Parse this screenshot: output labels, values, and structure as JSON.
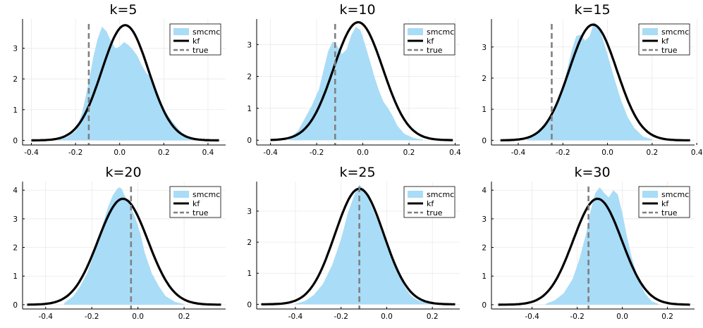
{
  "colors": {
    "smcmc_fill": "#a9dcf7",
    "kf_line": "#000000",
    "true_line": "#808080"
  },
  "legend": [
    "smcmc",
    "kf",
    "true"
  ],
  "chart_data": [
    {
      "type": "area",
      "title": "k=5",
      "xlim": [
        -0.44,
        0.48
      ],
      "ylim": [
        -0.15,
        3.95
      ],
      "xticks": [
        -0.4,
        -0.2,
        0.0,
        0.2,
        0.4
      ],
      "xtick_labels": [
        "-0.4",
        "-0.2",
        "0.0",
        "0.2",
        "0.4"
      ],
      "yticks": [
        0,
        1,
        2,
        3
      ],
      "ytick_labels": [
        "0",
        "1",
        "2",
        "3"
      ],
      "series": [
        {
          "name": "smcmc",
          "type": "area",
          "x": [
            -0.28,
            -0.24,
            -0.2,
            -0.17,
            -0.14,
            -0.12,
            -0.1,
            -0.08,
            -0.06,
            -0.04,
            -0.02,
            0.0,
            0.02,
            0.04,
            0.06,
            0.08,
            0.1,
            0.12,
            0.14,
            0.16,
            0.18,
            0.2,
            0.24,
            0.28,
            0.32,
            0.36
          ],
          "y": [
            0.03,
            0.1,
            0.3,
            0.9,
            1.9,
            2.7,
            3.3,
            3.7,
            3.55,
            3.25,
            3.0,
            3.05,
            3.2,
            3.1,
            2.95,
            2.75,
            2.45,
            2.2,
            2.05,
            1.75,
            1.4,
            1.0,
            0.6,
            0.25,
            0.08,
            0.02
          ]
        },
        {
          "name": "kf",
          "type": "normal",
          "mu": 0.025,
          "sigma": 0.106,
          "peak": 3.75,
          "x_range": [
            -0.4,
            0.45
          ]
        }
      ],
      "true_value": -0.14
    },
    {
      "type": "area",
      "title": "k=10",
      "xlim": [
        -0.46,
        0.42
      ],
      "ylim": [
        -0.15,
        3.8
      ],
      "xticks": [
        -0.4,
        -0.2,
        0.0,
        0.2,
        0.4
      ],
      "xtick_labels": [
        "-0.4",
        "-0.2",
        "0.0",
        "0.2",
        "0.4"
      ],
      "yticks": [
        0,
        1,
        2,
        3
      ],
      "ytick_labels": [
        "0",
        "1",
        "2",
        "3"
      ],
      "series": [
        {
          "name": "smcmc",
          "type": "area",
          "x": [
            -0.32,
            -0.28,
            -0.25,
            -0.22,
            -0.19,
            -0.17,
            -0.15,
            -0.13,
            -0.11,
            -0.09,
            -0.07,
            -0.05,
            -0.03,
            -0.01,
            0.01,
            0.03,
            0.05,
            0.07,
            0.09,
            0.11,
            0.13,
            0.15,
            0.18,
            0.22,
            0.26
          ],
          "y": [
            0.05,
            0.3,
            0.7,
            1.1,
            1.6,
            2.2,
            2.8,
            3.1,
            2.95,
            2.7,
            2.85,
            3.3,
            3.55,
            3.45,
            3.0,
            2.5,
            2.0,
            1.55,
            1.2,
            1.0,
            0.75,
            0.45,
            0.2,
            0.07,
            0.02
          ]
        },
        {
          "name": "kf",
          "type": "normal",
          "mu": -0.02,
          "sigma": 0.107,
          "peak": 3.7,
          "x_range": [
            -0.4,
            0.39
          ]
        }
      ],
      "true_value": -0.12
    },
    {
      "type": "area",
      "title": "k=15",
      "xlim": [
        -0.52,
        0.39
      ],
      "ylim": [
        -0.15,
        3.9
      ],
      "xticks": [
        -0.4,
        -0.2,
        0.0,
        0.2,
        0.4
      ],
      "xtick_labels": [
        "-0.4",
        "-0.2",
        "0.0",
        "0.2",
        "0.4"
      ],
      "yticks": [
        0,
        1,
        2,
        3
      ],
      "ytick_labels": [
        "0",
        "1",
        "2",
        "3"
      ],
      "series": [
        {
          "name": "smcmc",
          "type": "area",
          "x": [
            -0.36,
            -0.32,
            -0.28,
            -0.25,
            -0.22,
            -0.19,
            -0.16,
            -0.14,
            -0.12,
            -0.1,
            -0.08,
            -0.06,
            -0.04,
            -0.02,
            0.0,
            0.03,
            0.06,
            0.09,
            0.12,
            0.16,
            0.2
          ],
          "y": [
            0.05,
            0.25,
            0.55,
            0.7,
            1.2,
            2.0,
            2.9,
            3.35,
            3.4,
            3.2,
            3.35,
            3.8,
            3.65,
            3.25,
            2.75,
            2.0,
            1.3,
            0.75,
            0.4,
            0.12,
            0.03
          ]
        },
        {
          "name": "kf",
          "type": "normal",
          "mu": -0.065,
          "sigma": 0.107,
          "peak": 3.72,
          "x_range": [
            -0.48,
            0.37
          ]
        }
      ],
      "true_value": -0.25
    },
    {
      "type": "area",
      "title": "k=20",
      "xlim": [
        -0.5,
        0.38
      ],
      "ylim": [
        -0.15,
        4.3
      ],
      "xticks": [
        -0.4,
        -0.2,
        0.0,
        0.2
      ],
      "xtick_labels": [
        "-0.4",
        "-0.2",
        "0.0",
        "0.2"
      ],
      "yticks": [
        0,
        1,
        2,
        3,
        4
      ],
      "ytick_labels": [
        "0",
        "1",
        "2",
        "3",
        "4"
      ],
      "series": [
        {
          "name": "smcmc",
          "type": "area",
          "x": [
            -0.32,
            -0.28,
            -0.25,
            -0.22,
            -0.19,
            -0.16,
            -0.13,
            -0.11,
            -0.09,
            -0.08,
            -0.07,
            -0.06,
            -0.05,
            -0.03,
            -0.01,
            0.01,
            0.03,
            0.06,
            0.09,
            0.12,
            0.16,
            0.2
          ],
          "y": [
            0.05,
            0.3,
            0.65,
            1.1,
            1.8,
            2.6,
            3.4,
            3.8,
            4.05,
            4.1,
            4.05,
            3.85,
            3.7,
            3.4,
            3.0,
            2.5,
            1.8,
            1.1,
            0.65,
            0.3,
            0.1,
            0.02
          ]
        },
        {
          "name": "kf",
          "type": "normal",
          "mu": -0.065,
          "sigma": 0.108,
          "peak": 3.7,
          "x_range": [
            -0.48,
            0.36
          ]
        }
      ],
      "true_value": -0.03
    },
    {
      "type": "area",
      "title": "k=25",
      "xlim": [
        -0.57,
        0.32
      ],
      "ylim": [
        -0.15,
        3.95
      ],
      "xticks": [
        -0.4,
        -0.2,
        0.0,
        0.2
      ],
      "xtick_labels": [
        "-0.4",
        "-0.2",
        "0.0",
        "0.2"
      ],
      "yticks": [
        0,
        1,
        2,
        3
      ],
      "ytick_labels": [
        "0",
        "1",
        "2",
        "3"
      ],
      "series": [
        {
          "name": "smcmc",
          "type": "area",
          "x": [
            -0.4,
            -0.36,
            -0.32,
            -0.28,
            -0.24,
            -0.2,
            -0.17,
            -0.14,
            -0.12,
            -0.1,
            -0.08,
            -0.06,
            -0.04,
            -0.01,
            0.02,
            0.05,
            0.08,
            0.11,
            0.14,
            0.17,
            0.2
          ],
          "y": [
            0.02,
            0.1,
            0.3,
            0.65,
            1.25,
            2.1,
            2.95,
            3.55,
            3.85,
            3.7,
            3.4,
            3.05,
            2.7,
            2.1,
            1.5,
            1.0,
            0.55,
            0.25,
            0.12,
            0.06,
            0.02
          ]
        },
        {
          "name": "kf",
          "type": "normal",
          "mu": -0.12,
          "sigma": 0.107,
          "peak": 3.72,
          "x_range": [
            -0.55,
            0.3
          ]
        }
      ],
      "true_value": -0.12
    },
    {
      "type": "area",
      "title": "k=30",
      "xlim": [
        -0.58,
        0.32
      ],
      "ylim": [
        -0.15,
        4.3
      ],
      "xticks": [
        -0.4,
        -0.2,
        0.0,
        0.2
      ],
      "xtick_labels": [
        "-0.4",
        "-0.2",
        "0.0",
        "0.2"
      ],
      "yticks": [
        0,
        1,
        2,
        3,
        4
      ],
      "ytick_labels": [
        "0",
        "1",
        "2",
        "3",
        "4"
      ],
      "series": [
        {
          "name": "smcmc",
          "type": "area",
          "x": [
            -0.34,
            -0.3,
            -0.26,
            -0.22,
            -0.19,
            -0.16,
            -0.14,
            -0.12,
            -0.1,
            -0.08,
            -0.06,
            -0.04,
            -0.02,
            0.0,
            0.02,
            0.04,
            0.07,
            0.1,
            0.13,
            0.16
          ],
          "y": [
            0.03,
            0.15,
            0.4,
            0.9,
            1.6,
            2.5,
            3.3,
            3.9,
            4.1,
            3.9,
            3.75,
            4.0,
            3.85,
            3.2,
            2.4,
            1.7,
            0.9,
            0.4,
            0.12,
            0.03
          ]
        },
        {
          "name": "kf",
          "type": "normal",
          "mu": -0.11,
          "sigma": 0.108,
          "peak": 3.7,
          "x_range": [
            -0.55,
            0.3
          ]
        }
      ],
      "true_value": -0.15
    }
  ]
}
